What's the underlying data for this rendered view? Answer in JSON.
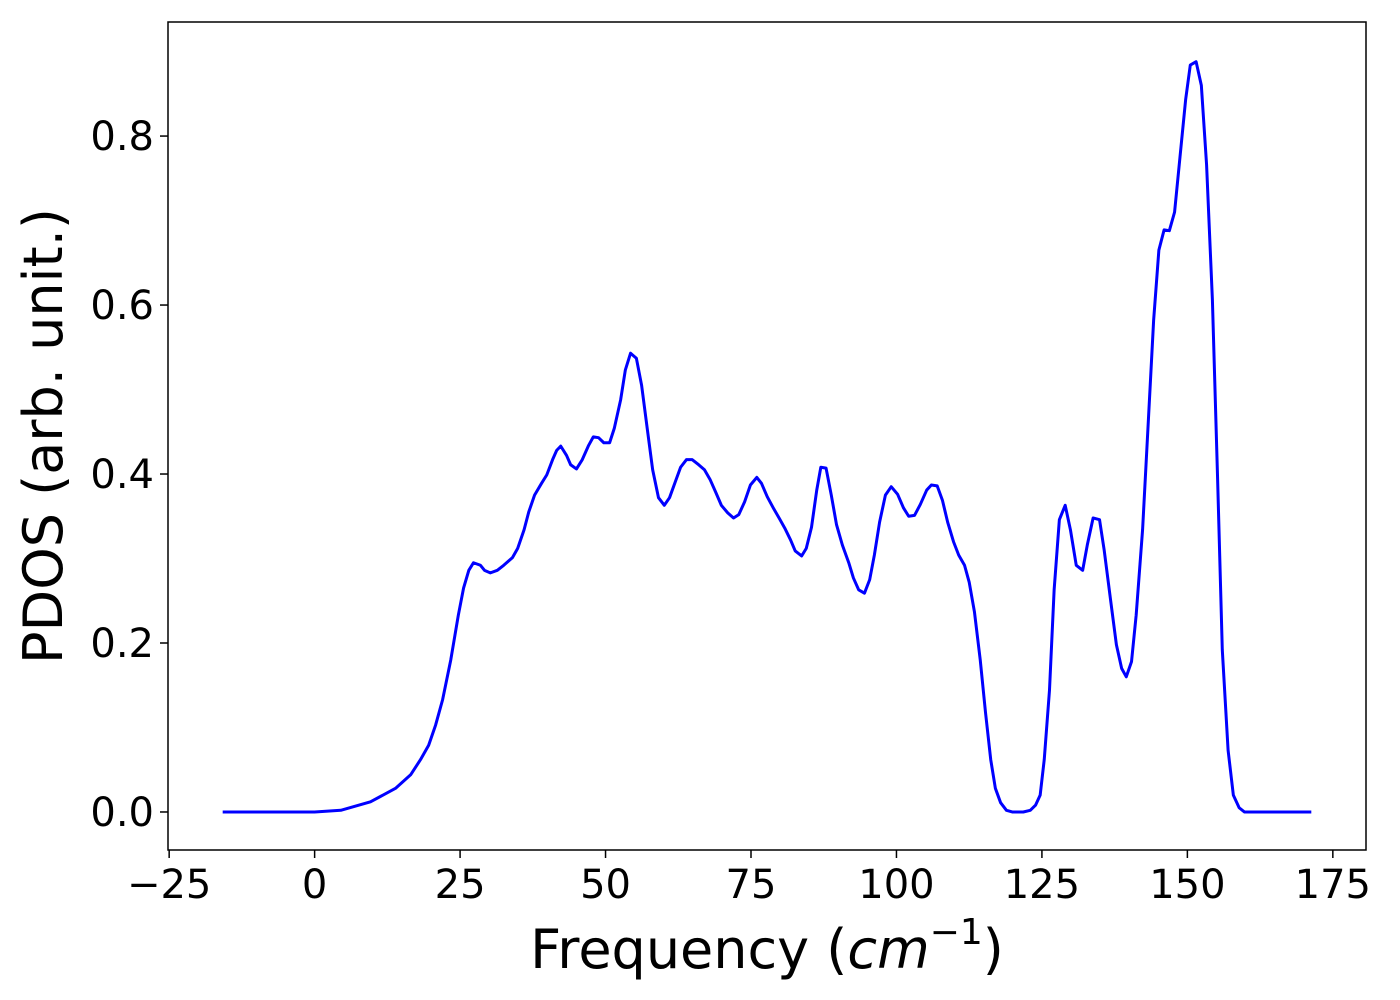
{
  "chart_data": {
    "type": "line",
    "xlabel": [
      "Frequency (",
      "cm",
      "−1",
      ")"
    ],
    "ylabel": "PDOS (arb. unit.)",
    "xlim": [
      -25.2,
      180.7
    ],
    "ylim": [
      -0.045,
      0.935
    ],
    "xticks": [
      {
        "value": -25,
        "label": "−25"
      },
      0,
      25,
      50,
      75,
      100,
      125,
      150,
      175
    ],
    "yticks": [
      {
        "value": 0,
        "label": "0.0"
      },
      0.2,
      0.4,
      0.6,
      0.8
    ],
    "series": [
      {
        "color": "#0000ff",
        "x": [
          -15.8,
          0,
          4.5,
          9.6,
          13.9,
          16.5,
          18.2,
          19.6,
          20.8,
          22,
          23.4,
          24.7,
          25.6,
          26.5,
          27.3,
          28.5,
          29.2,
          30.2,
          31.4,
          32.5,
          34,
          34.9,
          36,
          36.8,
          37.8,
          39,
          39.9,
          40.9,
          41.6,
          42.3,
          43.3,
          44,
          45,
          46,
          47.1,
          47.9,
          48.8,
          49.7,
          50.7,
          51.5,
          52.6,
          53.4,
          54.3,
          55.3,
          56.2,
          57.2,
          58.1,
          59.1,
          60.1,
          61,
          62,
          62.9,
          63.9,
          64.9,
          66,
          67,
          68,
          68.9,
          69.9,
          71,
          72,
          72.9,
          73.9,
          74.9,
          76,
          76.8,
          77.8,
          78.9,
          79.9,
          80.8,
          81.8,
          82.6,
          83.7,
          84.5,
          85.4,
          86.3,
          87,
          87.9,
          88.8,
          89.7,
          90.7,
          91.8,
          92.6,
          93.5,
          94.5,
          95.4,
          96.2,
          97.1,
          98.1,
          99.1,
          100.2,
          101.2,
          102.1,
          103.1,
          104.1,
          105.2,
          106,
          107,
          107.9,
          108.8,
          109.8,
          110.7,
          111.7,
          112.5,
          113.4,
          114.4,
          115.3,
          116.2,
          117,
          117.9,
          118.9,
          119.9,
          121.8,
          123,
          123.9,
          124.7,
          125.4,
          126.3,
          127.1,
          128,
          129,
          129.9,
          130.9,
          132,
          132.8,
          133.8,
          134.9,
          135.7,
          136.8,
          137.8,
          138.7,
          139.5,
          140.4,
          141.2,
          142.3,
          143.3,
          144.2,
          145.1,
          146,
          146.9,
          147.8,
          148.6,
          149.7,
          150.5,
          151.5,
          152.4,
          153.3,
          154.3,
          155.2,
          156,
          157,
          157.9,
          158.9,
          159.8,
          171.3
        ],
        "values": [
          0,
          0,
          0.002,
          0.012,
          0.028,
          0.044,
          0.062,
          0.079,
          0.103,
          0.133,
          0.18,
          0.233,
          0.265,
          0.286,
          0.295,
          0.292,
          0.286,
          0.283,
          0.286,
          0.292,
          0.301,
          0.312,
          0.334,
          0.355,
          0.375,
          0.389,
          0.399,
          0.417,
          0.428,
          0.433,
          0.422,
          0.411,
          0.406,
          0.417,
          0.434,
          0.444,
          0.443,
          0.437,
          0.437,
          0.454,
          0.488,
          0.523,
          0.543,
          0.537,
          0.505,
          0.452,
          0.405,
          0.372,
          0.363,
          0.372,
          0.391,
          0.408,
          0.417,
          0.417,
          0.411,
          0.405,
          0.393,
          0.379,
          0.363,
          0.354,
          0.348,
          0.352,
          0.367,
          0.387,
          0.396,
          0.389,
          0.373,
          0.359,
          0.347,
          0.336,
          0.322,
          0.309,
          0.303,
          0.312,
          0.337,
          0.381,
          0.408,
          0.407,
          0.375,
          0.34,
          0.316,
          0.295,
          0.277,
          0.263,
          0.259,
          0.275,
          0.304,
          0.343,
          0.375,
          0.385,
          0.376,
          0.36,
          0.35,
          0.351,
          0.364,
          0.381,
          0.387,
          0.386,
          0.369,
          0.343,
          0.32,
          0.304,
          0.292,
          0.272,
          0.237,
          0.18,
          0.118,
          0.062,
          0.028,
          0.011,
          0.002,
          0,
          0,
          0.002,
          0.008,
          0.02,
          0.062,
          0.144,
          0.263,
          0.346,
          0.363,
          0.334,
          0.292,
          0.286,
          0.316,
          0.348,
          0.346,
          0.31,
          0.251,
          0.198,
          0.17,
          0.16,
          0.178,
          0.233,
          0.334,
          0.464,
          0.582,
          0.665,
          0.689,
          0.688,
          0.71,
          0.766,
          0.843,
          0.884,
          0.888,
          0.86,
          0.766,
          0.606,
          0.393,
          0.192,
          0.073,
          0.02,
          0.005,
          0,
          0
        ]
      }
    ]
  }
}
